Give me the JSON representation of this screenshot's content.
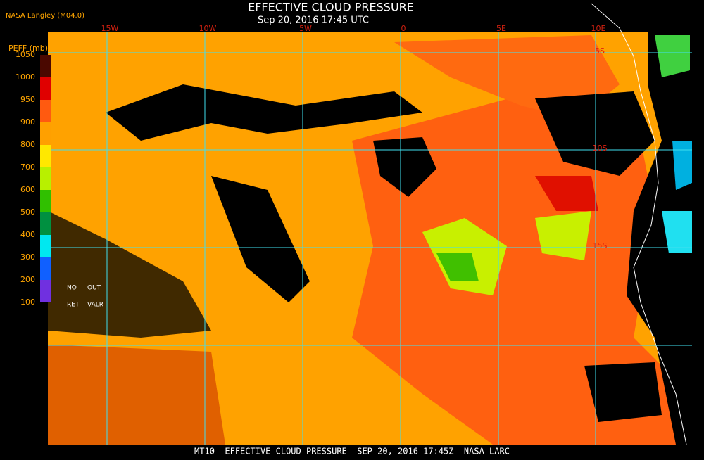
{
  "header": {
    "title": "EFFECTIVE CLOUD PRESSURE",
    "subtitle": "Sep 20, 2016 17:45 UTC",
    "source": "NASA Langley (M04.0)"
  },
  "colorbar": {
    "label": "PEFF (mb)",
    "ticks": [
      1050,
      1000,
      950,
      900,
      800,
      700,
      600,
      500,
      400,
      300,
      200,
      100
    ],
    "colors": [
      "#4a0800",
      "#e00000",
      "#ff5a10",
      "#ffa000",
      "#ffe800",
      "#b8f000",
      "#30c000",
      "#009040",
      "#00e8f0",
      "#1060ff",
      "#7030e0"
    ],
    "notes": [
      "NO",
      "OUT",
      "RET",
      "VALR"
    ]
  },
  "map": {
    "longitudes": [
      "15W",
      "10W",
      "5W",
      "0",
      "5E",
      "10E"
    ],
    "latitudes": [
      "5S",
      "10S",
      "15S"
    ]
  },
  "footer": "MT10  EFFECTIVE CLOUD PRESSURE  SEP 20, 2016 17:45Z  NASA LARC"
}
